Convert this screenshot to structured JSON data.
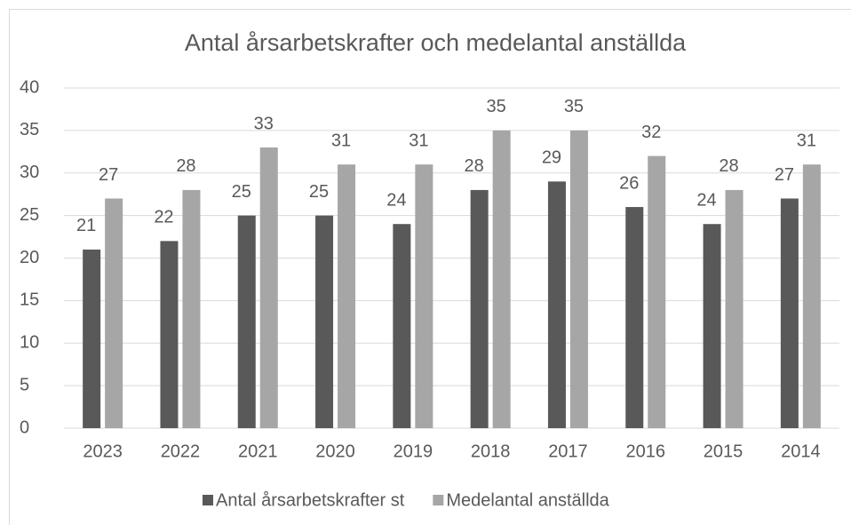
{
  "chart_data": {
    "type": "bar",
    "title": "Antal årsarbetskrafter och medelantal anställda",
    "categories": [
      "2023",
      "2022",
      "2021",
      "2020",
      "2019",
      "2018",
      "2017",
      "2016",
      "2015",
      "2014"
    ],
    "series": [
      {
        "name": "Antal årsarbetskrafter st",
        "color": "#595959",
        "values": [
          21,
          22,
          25,
          25,
          24,
          28,
          29,
          26,
          24,
          27
        ]
      },
      {
        "name": "Medelantal anställda",
        "color": "#a6a6a6",
        "values": [
          27,
          28,
          33,
          31,
          31,
          35,
          35,
          32,
          28,
          31
        ]
      }
    ],
    "ylim": [
      0,
      40
    ],
    "yticks": [
      0,
      5,
      10,
      15,
      20,
      25,
      30,
      35,
      40
    ],
    "grid": true,
    "legend": "bottom"
  }
}
